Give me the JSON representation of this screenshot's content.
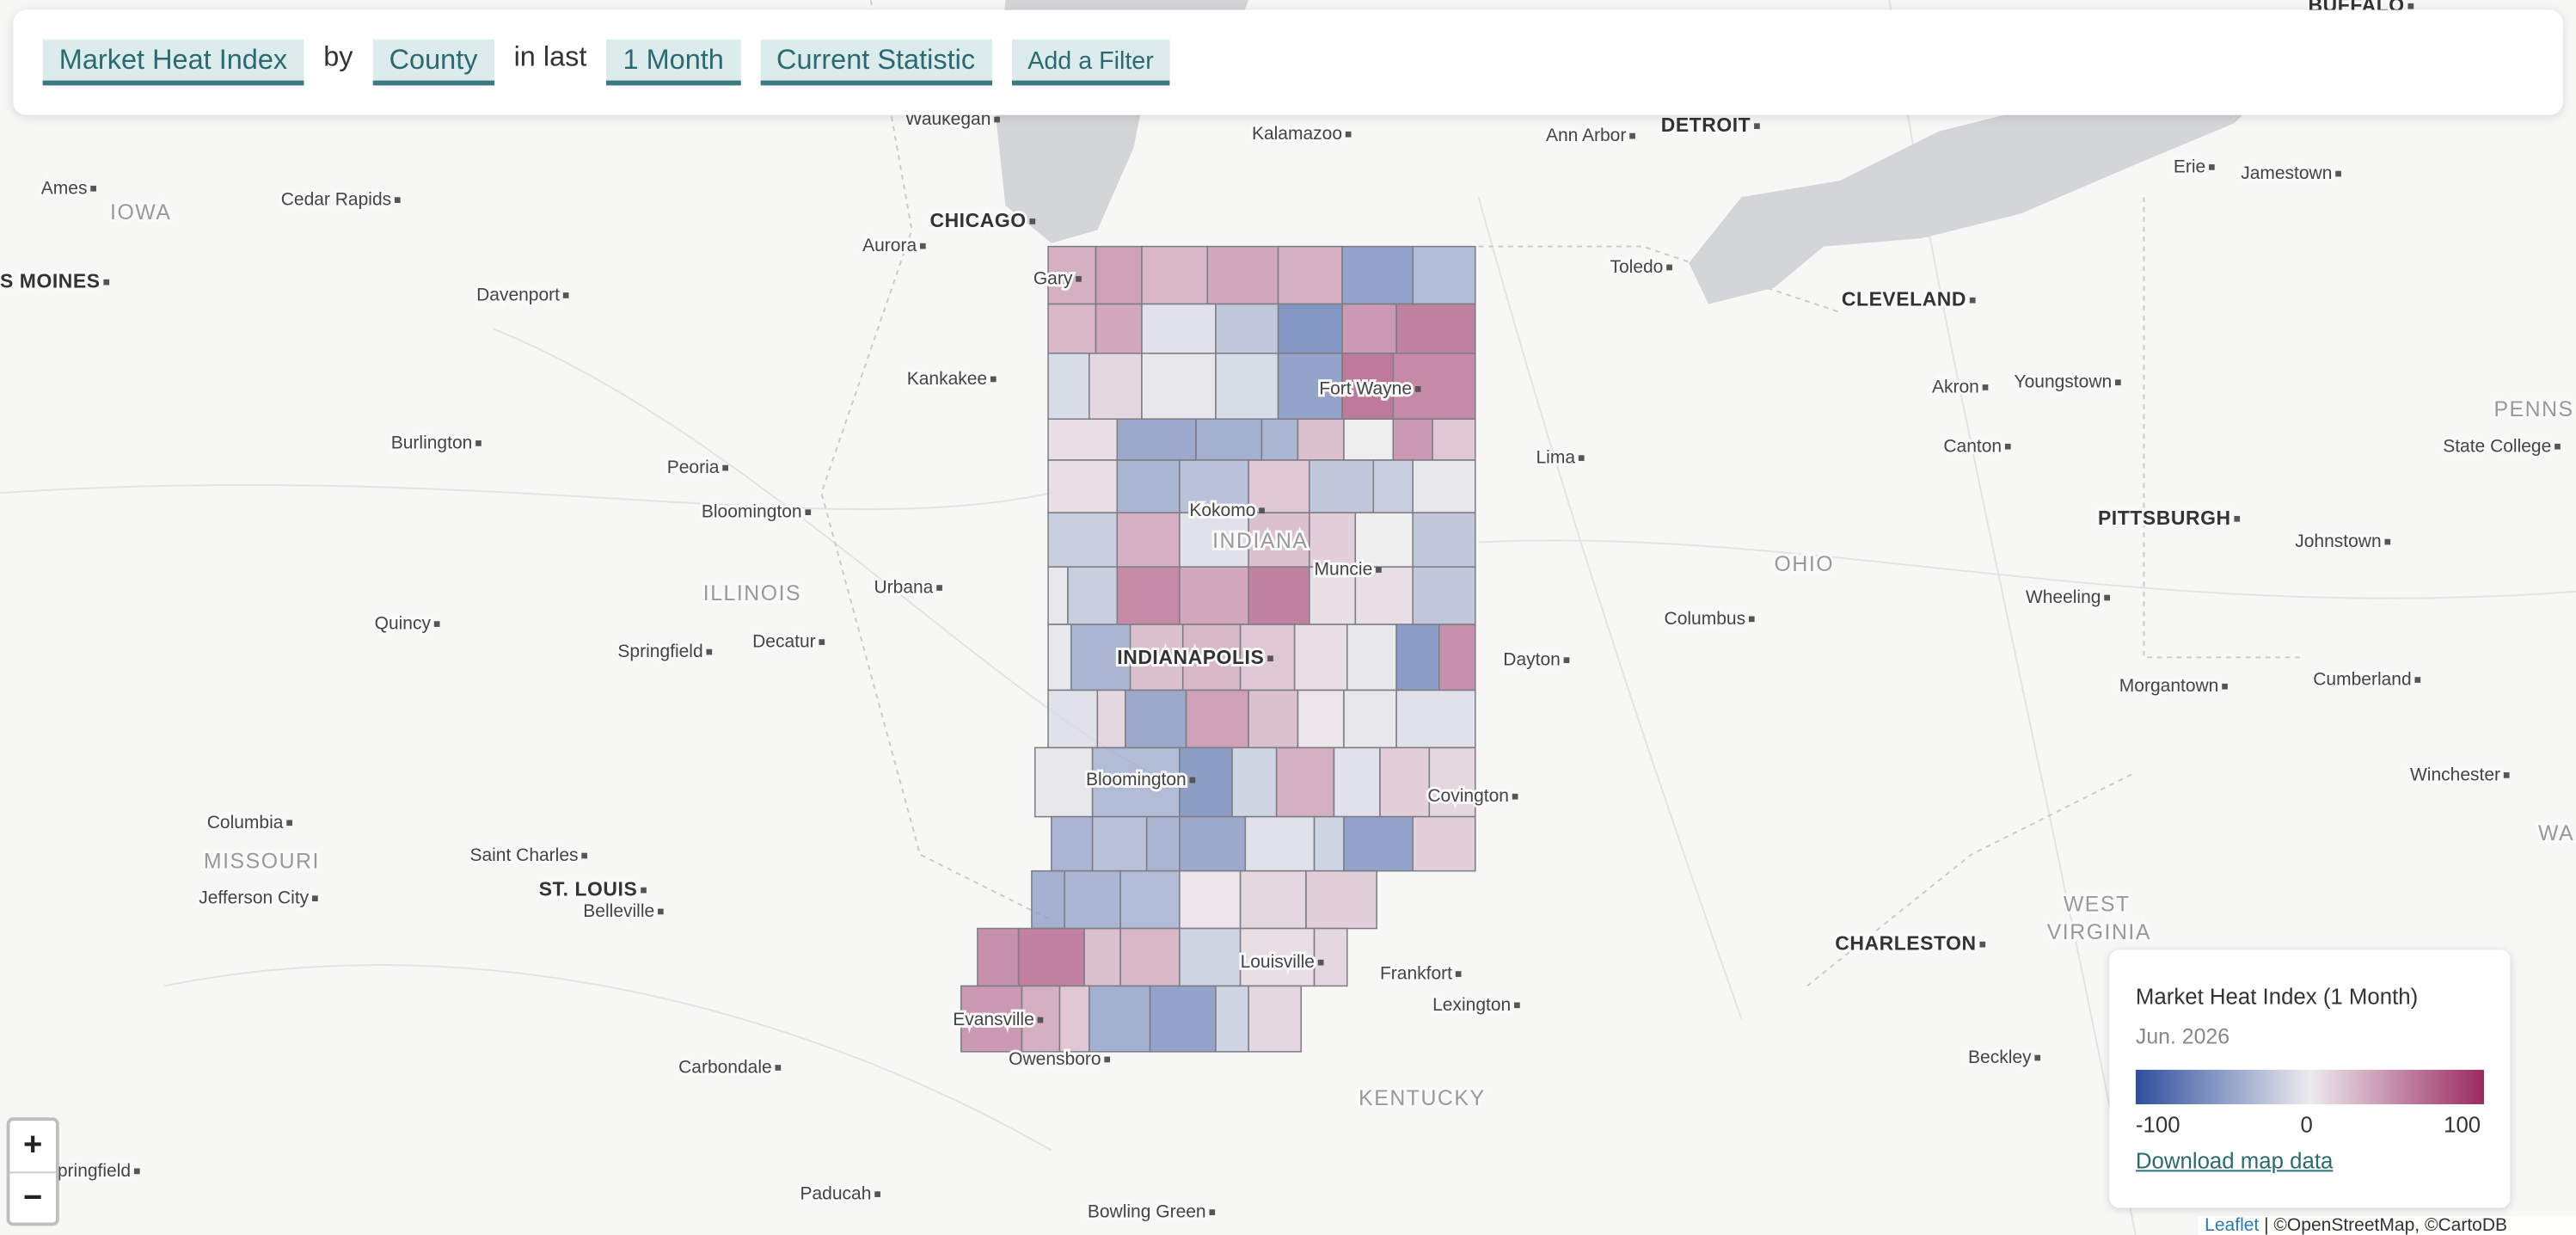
{
  "toolbar": {
    "metric": "Market Heat Index",
    "by": "by",
    "geography": "County",
    "in_last": "in last",
    "period": "1 Month",
    "statistic": "Current Statistic",
    "filter": "Add a Filter"
  },
  "map": {
    "places": [
      "BUFFALO",
      "Waukegan",
      "Kalamazoo",
      "Ann Arbor",
      "DETROIT",
      "Ames",
      "IOWA",
      "Cedar Rapids",
      "CHICAGO",
      "Aurora",
      "Gary",
      "Toledo",
      "Erie",
      "Jamestown",
      "CLEVELAND",
      "S MOINES",
      "Davenport",
      "Kankakee",
      "Fort Wayne",
      "Akron",
      "Youngstown",
      "PENNS",
      "Burlington",
      "Lima",
      "Canton",
      "State College",
      "Peoria",
      "Bloomington",
      "Kokomo",
      "INDIANA",
      "PITTSBURGH",
      "Johnstown",
      "OHIO",
      "Muncie",
      "Urbana",
      "ILLINOIS",
      "Wheeling",
      "Quincy",
      "Columbus",
      "Springfield",
      "Decatur",
      "INDIANAPOLIS",
      "Dayton",
      "Cumberland",
      "Morgantown",
      "Bloomington",
      "Covington",
      "Winchester",
      "Columbia",
      "MISSOURI",
      "Saint Charles",
      "WA",
      "Jefferson City",
      "ST. LOUIS",
      "Belleville",
      "WEST",
      "VIRGINIA",
      "CHARLESTON",
      "Louisville",
      "Frankfort",
      "Lexington",
      "Evansville",
      "Beckley",
      "Owensboro",
      "Carbondale",
      "KENTUCKY",
      "pringfield",
      "Paducah",
      "Bowling Green"
    ],
    "counties": {
      "values": [
        40,
        50,
        35,
        45,
        40,
        -60,
        -40,
        35,
        45,
        -10,
        -30,
        -70,
        55,
        70,
        -15,
        15,
        -5,
        -15,
        -60,
        75,
        65,
        10,
        -55,
        -50,
        -45,
        30,
        0,
        55,
        25,
        10,
        -45,
        -35,
        25,
        -30,
        -25,
        -5,
        -25,
        40,
        -10,
        30,
        20,
        0,
        -30,
        -5,
        -25,
        65,
        45,
        70,
        10,
        10,
        -30,
        -5,
        -45,
        30,
        35,
        25,
        10,
        -5,
        -65,
        60,
        -10,
        15,
        -55,
        50,
        30,
        5,
        -5,
        -10,
        -5,
        -40,
        -65,
        -20,
        40,
        -10,
        20,
        15,
        -45,
        -35,
        -45,
        -55,
        -10,
        -20,
        -60,
        20,
        -50,
        -45,
        -40,
        5,
        15,
        20,
        60,
        70,
        30,
        35,
        -20,
        10,
        15,
        55,
        40,
        25,
        -50,
        -60,
        -20,
        15
      ]
    }
  },
  "legend": {
    "title": "Market Heat Index (1 Month)",
    "date": "Jun. 2026",
    "scale_min": -100,
    "scale_mid": 0,
    "scale_max": 100,
    "colors": [
      "#2e4f9e",
      "#ecebee",
      "#9a2a60"
    ],
    "download": "Download map data"
  },
  "zoom": {
    "in": "+",
    "out": "−"
  },
  "attribution": {
    "link": "Leaflet",
    "text": "| ©OpenStreetMap, ©CartoDB"
  }
}
